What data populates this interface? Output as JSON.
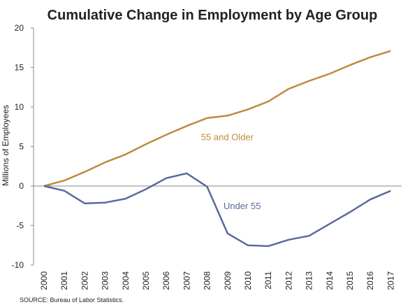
{
  "chart_data": {
    "type": "line",
    "title": "Cumulative Change in Employment by Age Group",
    "xlabel": "",
    "ylabel": "Millions of Employees",
    "x": [
      "2000",
      "2001",
      "2002",
      "2003",
      "2004",
      "2005",
      "2006",
      "2007",
      "2008",
      "2009",
      "2010",
      "2011",
      "2012",
      "2013",
      "2014",
      "2015",
      "2016",
      "2017"
    ],
    "ylim": [
      -10,
      20
    ],
    "yticks": [
      "20",
      "15",
      "10",
      "5",
      "0",
      "-5",
      "-10"
    ],
    "grid": false,
    "series": [
      {
        "name": "55 and Older",
        "color": "#C08A3E",
        "values": [
          0,
          0.7,
          1.8,
          3.0,
          4.0,
          5.3,
          6.5,
          7.6,
          8.6,
          8.9,
          9.7,
          10.7,
          12.3,
          13.3,
          14.2,
          15.3,
          16.3,
          17.1
        ]
      },
      {
        "name": "Under 55",
        "color": "#5B6A9C",
        "values": [
          0,
          -0.6,
          -2.2,
          -2.1,
          -1.6,
          -0.4,
          1.0,
          1.6,
          -0.1,
          -6.0,
          -7.5,
          -7.6,
          -6.8,
          -6.3,
          -4.8,
          -3.3,
          -1.7,
          -0.6
        ]
      }
    ],
    "source": "SOURCE: Bureau of Labor Statistics."
  }
}
